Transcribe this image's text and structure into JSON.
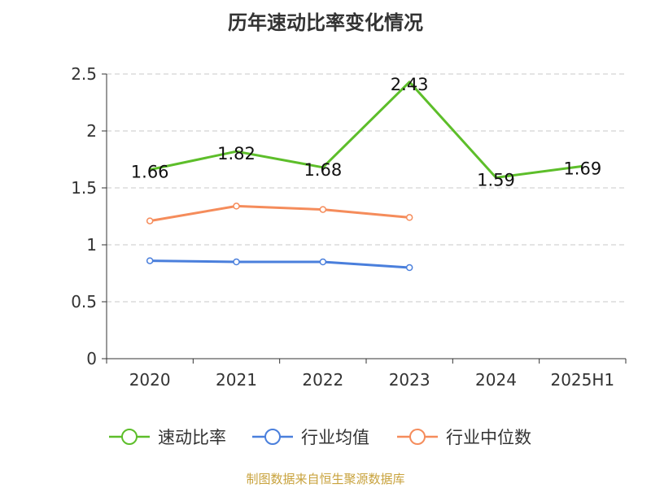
{
  "chart_data": {
    "type": "line",
    "title": "历年速动比率变化情况",
    "categories": [
      "2020",
      "2021",
      "2022",
      "2023",
      "2024",
      "2025H1"
    ],
    "ylim": [
      0,
      2.5
    ],
    "yticks": [
      "0",
      "0.5",
      "1",
      "1.5",
      "2",
      "2.5"
    ],
    "grid": true,
    "legend_position": "bottom",
    "series": [
      {
        "name": "速动比率",
        "color": "#5dbe2a",
        "values": [
          1.66,
          1.82,
          1.68,
          2.43,
          1.59,
          1.69
        ],
        "labels": [
          "1.66",
          "1.82",
          "1.68",
          "2.43",
          "1.59",
          "1.69"
        ]
      },
      {
        "name": "行业均值",
        "color": "#4a7fdc",
        "values": [
          0.86,
          0.85,
          0.85,
          0.8,
          null,
          null
        ]
      },
      {
        "name": "行业中位数",
        "color": "#f58c5b",
        "values": [
          1.21,
          1.34,
          1.31,
          1.24,
          null,
          null
        ]
      }
    ]
  },
  "source": "制图数据来自恒生聚源数据库"
}
